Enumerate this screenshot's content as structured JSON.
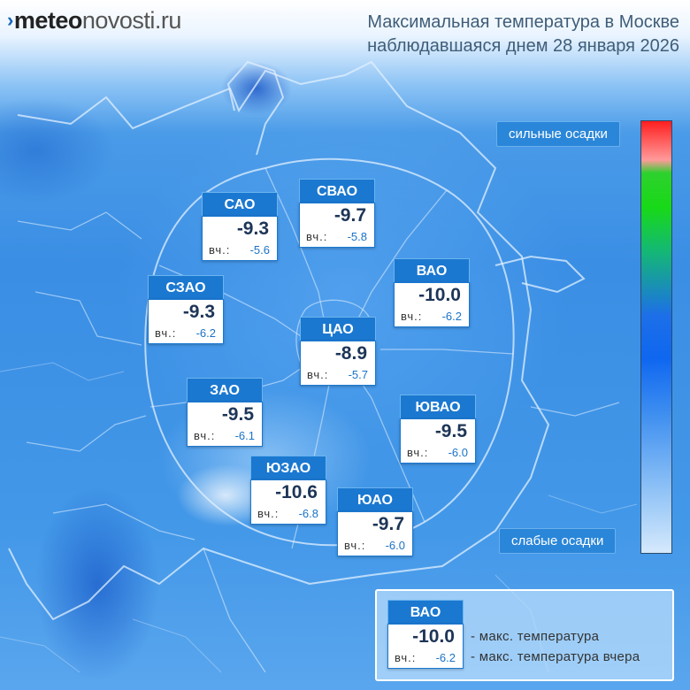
{
  "logo": {
    "mark": "›",
    "part1": "meteo",
    "part2": "novosti.ru"
  },
  "title": {
    "line1": "Максимальная температура в Москве",
    "line2": "наблюдавшаяся днем 28 января 2026"
  },
  "legend": {
    "high_label": "сильные осадки",
    "low_label": "слабые осадки"
  },
  "yesterday_label": "вч.:",
  "districts": [
    {
      "name": "САО",
      "tmax": "-9.3",
      "yesterday": "-5.6"
    },
    {
      "name": "СВАО",
      "tmax": "-9.7",
      "yesterday": "-5.8"
    },
    {
      "name": "ВАО",
      "tmax": "-10.0",
      "yesterday": "-6.2"
    },
    {
      "name": "СЗАО",
      "tmax": "-9.3",
      "yesterday": "-6.2"
    },
    {
      "name": "ЦАО",
      "tmax": "-8.9",
      "yesterday": "-5.7"
    },
    {
      "name": "ЗАО",
      "tmax": "-9.5",
      "yesterday": "-6.1"
    },
    {
      "name": "ЮВАО",
      "tmax": "-9.5",
      "yesterday": "-6.0"
    },
    {
      "name": "ЮЗАО",
      "tmax": "-10.6",
      "yesterday": "-6.8"
    },
    {
      "name": "ЮАО",
      "tmax": "-9.7",
      "yesterday": "-6.0"
    }
  ],
  "key": {
    "sample": {
      "name": "ВАО",
      "tmax": "-10.0",
      "yesterday": "-6.2"
    },
    "desc_max": "- макс. температура",
    "desc_yesterday": "- макс. температура вчера"
  },
  "colors": {
    "header_blue": "#1b78d0",
    "value_blue": "#1a73c7",
    "tag_blue": "#2a86d8"
  }
}
